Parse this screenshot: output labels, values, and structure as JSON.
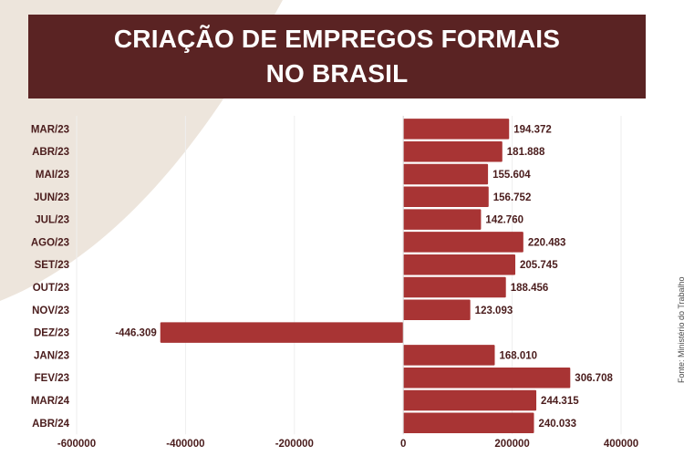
{
  "title_lines": [
    "CRIAÇÃO DE EMPREGOS FORMAIS",
    "NO BRASIL"
  ],
  "source": "Fonte: Ministério do Trabalho",
  "colors": {
    "banner": "#5a2323",
    "bar": "#a83434",
    "grid": "#eeeeee",
    "text": "#4a1c1c",
    "background_shape": "#ede5dc"
  },
  "chart_data": {
    "type": "bar",
    "orientation": "horizontal",
    "title": "CRIAÇÃO DE EMPREGOS FORMAIS NO BRASIL",
    "categories": [
      "MAR/23",
      "ABR/23",
      "MAI/23",
      "JUN/23",
      "JUL/23",
      "AGO/23",
      "SET/23",
      "OUT/23",
      "NOV/23",
      "DEZ/23",
      "JAN/23",
      "FEV/23",
      "MAR/24",
      "ABR/24"
    ],
    "values": [
      194372,
      181888,
      155604,
      156752,
      142760,
      220483,
      205745,
      188456,
      123093,
      -446309,
      168010,
      306708,
      244315,
      240033
    ],
    "value_labels": [
      "194.372",
      "181.888",
      "155.604",
      "156.752",
      "142.760",
      "220.483",
      "205.745",
      "188.456",
      "123.093",
      "-446.309",
      "168.010",
      "306.708",
      "244.315",
      "240.033"
    ],
    "x_ticks": [
      -600000,
      -400000,
      -200000,
      0,
      200000,
      400000
    ],
    "xlim": [
      -600000,
      400000
    ],
    "grid": true,
    "legend": "none"
  }
}
